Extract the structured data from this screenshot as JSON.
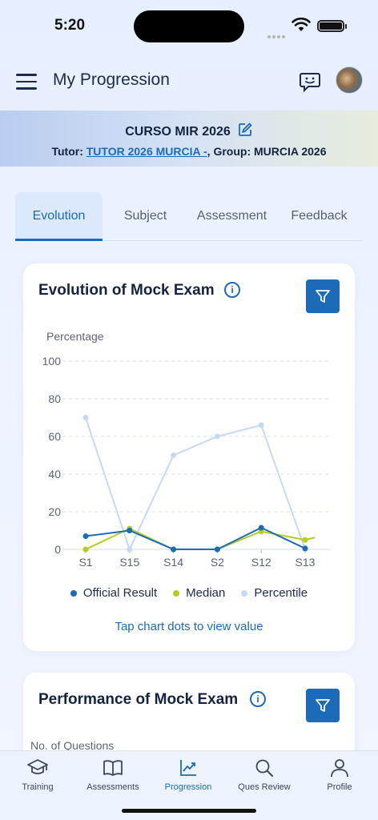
{
  "status_bar": {
    "time": "5:20"
  },
  "header": {
    "title": "My Progression"
  },
  "course": {
    "name": "CURSO MIR 2026",
    "tutor_label": "Tutor: ",
    "tutor_name": "TUTOR 2026 MURCIA -",
    "group_label": ", Group: ",
    "group_name": "MURCIA 2026"
  },
  "tabs": [
    {
      "label": "Evolution",
      "active": true
    },
    {
      "label": "Subject",
      "active": false
    },
    {
      "label": "Assessment",
      "active": false
    },
    {
      "label": "Feedback",
      "active": false
    }
  ],
  "evolution_card": {
    "title": "Evolution of Mock Exam",
    "info_icon": "info-icon",
    "filter_icon": "filter-icon",
    "hint": "Tap chart dots to view value"
  },
  "chart_data": {
    "type": "line",
    "ylabel": "Percentage",
    "ylim": [
      0,
      100
    ],
    "yticks": [
      0,
      20,
      40,
      60,
      80,
      100
    ],
    "grid": true,
    "legend_position": "bottom",
    "categories": [
      "S1",
      "S15",
      "S14",
      "S2",
      "S12",
      "S13"
    ],
    "series": [
      {
        "name": "Official Result",
        "color": "#1b6bb8",
        "values": [
          7,
          10,
          0,
          0,
          11.5,
          0.5
        ]
      },
      {
        "name": "Median",
        "color": "#b7cc1c",
        "values": [
          0,
          11,
          0,
          0,
          9.5,
          5
        ]
      },
      {
        "name": "Percentile",
        "color": "#c6d9f2",
        "values": [
          70,
          0,
          50,
          60,
          66,
          0
        ]
      }
    ]
  },
  "performance_card": {
    "title": "Performance of Mock Exam",
    "ylabel": "No. of Questions"
  },
  "bottom_nav": [
    {
      "label": "Training",
      "icon": "graduation-cap-icon",
      "active": false
    },
    {
      "label": "Assessments",
      "icon": "book-icon",
      "active": false
    },
    {
      "label": "Progression",
      "icon": "chart-icon",
      "active": true
    },
    {
      "label": "Ques Review",
      "icon": "search-icon",
      "active": false
    },
    {
      "label": "Profile",
      "icon": "user-icon",
      "active": false
    }
  ],
  "colors": {
    "accent": "#1b6bb8",
    "title": "#14233f"
  }
}
